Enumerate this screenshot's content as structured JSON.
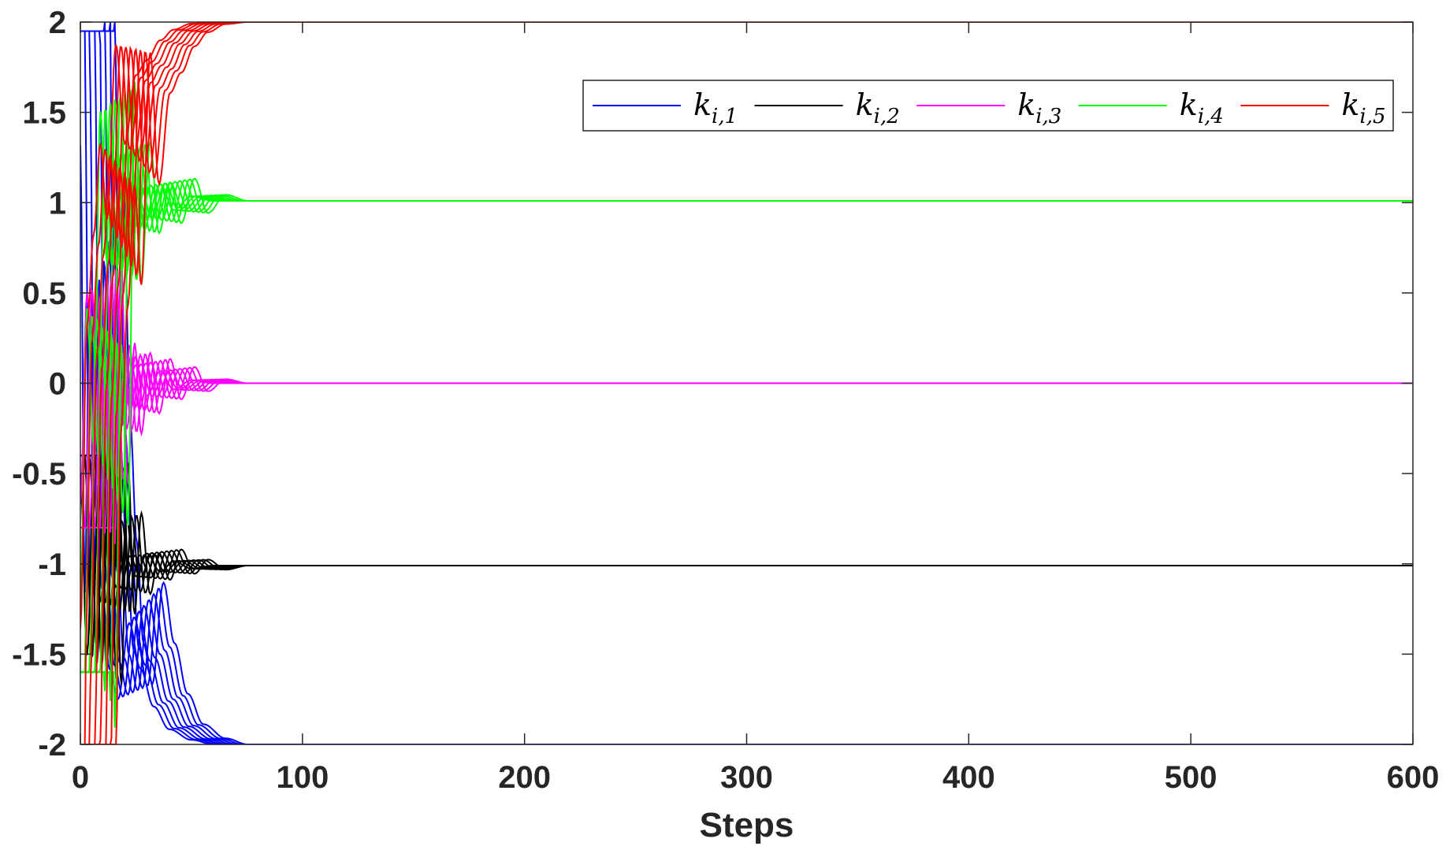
{
  "chart_data": {
    "type": "line",
    "title": "",
    "xlabel": "Steps",
    "ylabel": "",
    "xlim": [
      0,
      600
    ],
    "ylim": [
      -2,
      2
    ],
    "xticks": [
      0,
      100,
      200,
      300,
      400,
      500,
      600
    ],
    "yticks": [
      -2,
      -1.5,
      -1,
      -0.5,
      0,
      0.5,
      1,
      1.5,
      2
    ],
    "x_tick_labels": [
      "0",
      "100",
      "200",
      "300",
      "400",
      "500",
      "600"
    ],
    "y_tick_labels": [
      "-2",
      "-1.5",
      "-1",
      "-0.5",
      "0",
      "0.5",
      "1",
      "1.5",
      "2"
    ],
    "grid": false,
    "legend_position": "top-right",
    "legend_orientation": "horizontal",
    "series_per_group": 8,
    "series": [
      {
        "name": "k_{i,1}",
        "legend_main": "k",
        "legend_sub": "i,1",
        "color": "#0000ff",
        "final_value": -2,
        "x": [
          0,
          2,
          4,
          7,
          10,
          13,
          17,
          22,
          27,
          33,
          40,
          50,
          60,
          100,
          600
        ],
        "y": [
          1.95,
          -1.0,
          0.8,
          -0.4,
          -1.0,
          -1.5,
          -1.7,
          -1.2,
          -1.5,
          -1.75,
          -1.9,
          -1.97,
          -2,
          -2,
          -2
        ]
      },
      {
        "name": "k_{i,2}",
        "legend_main": "k",
        "legend_sub": "i,2",
        "color": "#000000",
        "final_value": -1.01,
        "x": [
          0,
          3,
          6,
          9,
          12,
          16,
          20,
          25,
          30,
          36,
          42,
          50,
          60,
          100,
          600
        ],
        "y": [
          -0.4,
          -1.6,
          -0.5,
          -1.25,
          -0.75,
          -1.15,
          -0.95,
          -1.08,
          -0.93,
          -1.05,
          -0.98,
          -1.03,
          -1.01,
          -1.01,
          -1.01
        ],
        "y_series_spread": 0.06
      },
      {
        "name": "k_{i,3}",
        "legend_main": "k",
        "legend_sub": "i,3",
        "color": "#ff00ff",
        "final_value": 0,
        "x": [
          0,
          3,
          6,
          9,
          12,
          16,
          20,
          25,
          30,
          36,
          42,
          50,
          60,
          100,
          600
        ],
        "y": [
          -0.8,
          0.6,
          -0.5,
          0.2,
          -0.25,
          0.15,
          -0.15,
          0.12,
          -0.08,
          0.08,
          -0.04,
          0.02,
          0,
          0,
          0
        ]
      },
      {
        "name": "k_{i,4}",
        "legend_main": "k",
        "legend_sub": "i,4",
        "color": "#00ff00",
        "final_value": 1.01,
        "x": [
          0,
          3,
          6,
          9,
          12,
          16,
          20,
          25,
          30,
          36,
          42,
          50,
          60,
          100,
          600
        ],
        "y": [
          -1.6,
          0.3,
          -0.6,
          1.6,
          0.6,
          1.3,
          0.85,
          1.1,
          0.9,
          1.12,
          0.95,
          1.04,
          1.01,
          1.01,
          1.01
        ]
      },
      {
        "name": "k_{i,5}",
        "legend_main": "k",
        "legend_sub": "i,5",
        "color": "#ff0000",
        "final_value": 2,
        "x": [
          0,
          3,
          6,
          9,
          12,
          16,
          20,
          25,
          30,
          36,
          42,
          50,
          60,
          100,
          600
        ],
        "y": [
          -2.0,
          0.0,
          0.6,
          1.2,
          0.7,
          1.85,
          1.2,
          1.65,
          1.75,
          1.88,
          1.95,
          1.99,
          2.0,
          2.0,
          2.0
        ]
      }
    ]
  }
}
